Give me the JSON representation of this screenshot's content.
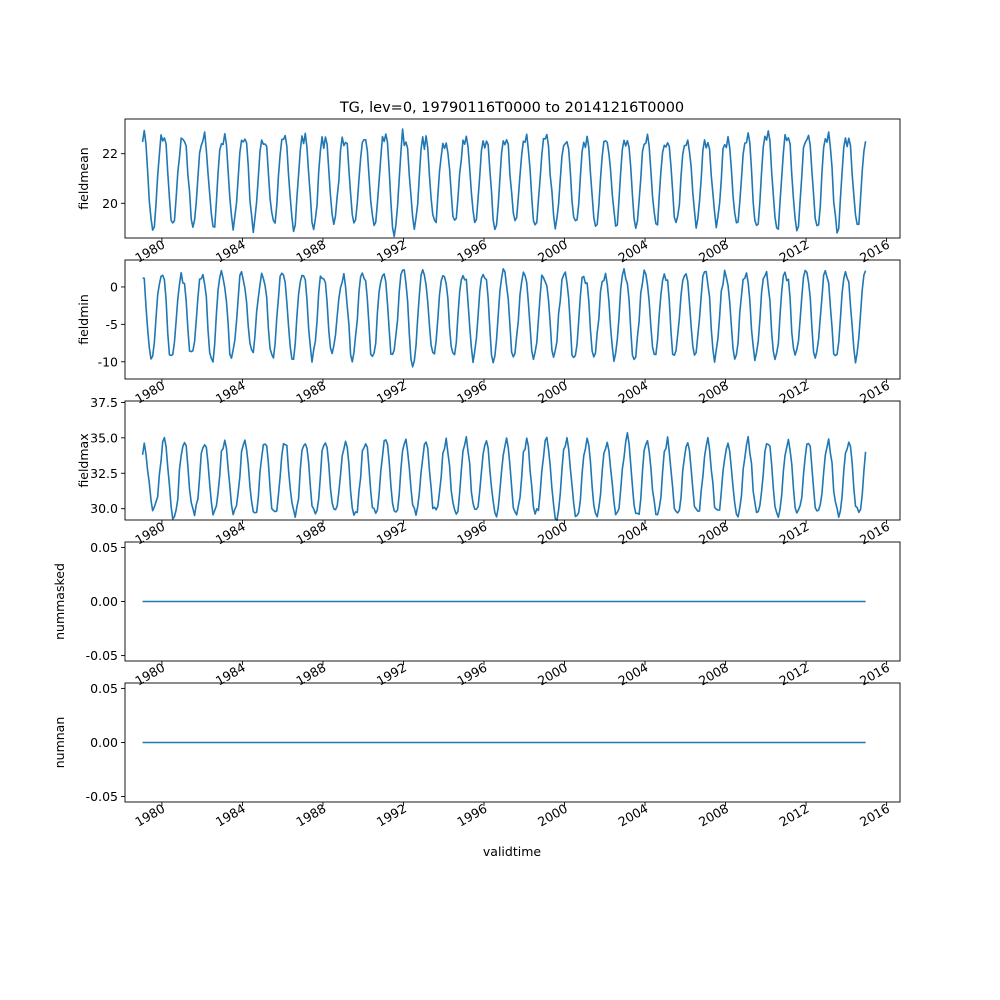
{
  "chart_data": {
    "title": "TG, lev=0, 19790116T0000 to 20141216T0000",
    "type": "line",
    "line_color": "#1f77b4",
    "xlabel": "validtime",
    "x_ticks": [
      "1980",
      "1984",
      "1988",
      "1992",
      "1996",
      "2000",
      "2004",
      "2008",
      "2012",
      "2016"
    ],
    "x_range": [
      "1978-03-01",
      "2016-09-01"
    ],
    "x_start": "1979-01",
    "x_end": "2014-12",
    "panels": [
      {
        "ylabel": "fieldmean",
        "y_ticks": [
          "20",
          "22"
        ],
        "y_tick_values": [
          20,
          22
        ],
        "ylim": [
          18.6,
          23.4
        ],
        "annual_cycle": [
          22.4,
          22.6,
          22.2,
          21.3,
          20.3,
          19.5,
          19.1,
          19.3,
          20.1,
          21.1,
          22.0,
          22.5
        ],
        "yearly_amplitude_scale": [
          1.15,
          1.05,
          1.0,
          1.05,
          1.0,
          1.05,
          1.0,
          1.05,
          1.05,
          1.0,
          1.0,
          1.0,
          1.2,
          1.0,
          0.95,
          0.95,
          0.95,
          1.0,
          1.0,
          1.05,
          1.0,
          1.0,
          1.0,
          1.0,
          1.0,
          1.0,
          1.0,
          1.0,
          1.0,
          1.0,
          1.1,
          1.1,
          1.05,
          1.05,
          1.1,
          1.05
        ],
        "grid": false
      },
      {
        "ylabel": "fieldmin",
        "y_ticks": [
          "-10",
          "-5",
          "0"
        ],
        "y_tick_values": [
          -10,
          -5,
          0
        ],
        "ylim": [
          -12.3,
          3.6
        ],
        "annual_cycle": [
          1.5,
          0.5,
          -2.0,
          -5.5,
          -8.5,
          -9.5,
          -9.0,
          -7.0,
          -4.0,
          -1.0,
          1.0,
          1.8
        ],
        "yearly_amplitude_scale": [
          1.0,
          1.0,
          0.9,
          1.1,
          1.0,
          0.9,
          1.0,
          1.0,
          1.0,
          0.9,
          1.0,
          1.0,
          1.0,
          1.1,
          0.9,
          1.0,
          1.0,
          1.0,
          1.0,
          1.0,
          0.9,
          1.0,
          0.9,
          1.0,
          1.0,
          1.0,
          1.0,
          1.0,
          1.0,
          1.0,
          1.0,
          1.0,
          1.0,
          1.0,
          1.0,
          1.0
        ],
        "grid": false
      },
      {
        "ylabel": "fieldmax",
        "y_ticks": [
          "30.0",
          "32.5",
          "35.0",
          "37.5"
        ],
        "y_tick_values": [
          30.0,
          32.5,
          35.0,
          37.5
        ],
        "ylim": [
          29.2,
          37.6
        ],
        "annual_cycle": [
          34.3,
          34.8,
          34.2,
          33.0,
          31.5,
          30.3,
          29.8,
          29.7,
          30.0,
          31.0,
          32.5,
          33.8
        ],
        "yearly_amplitude_scale": [
          0.9,
          1.1,
          1.0,
          1.0,
          1.0,
          1.0,
          1.0,
          1.0,
          1.0,
          1.0,
          1.0,
          1.0,
          1.1,
          1.0,
          1.0,
          1.0,
          1.0,
          1.0,
          1.0,
          1.0,
          1.1,
          1.1,
          1.0,
          1.0,
          1.1,
          1.0,
          1.0,
          1.0,
          1.0,
          1.0,
          1.0,
          1.0,
          1.0,
          1.0,
          1.0,
          1.0
        ],
        "grid": false
      },
      {
        "ylabel": "nummasked",
        "y_ticks": [
          "-0.05",
          "0.00",
          "0.05"
        ],
        "y_tick_values": [
          -0.05,
          0.0,
          0.05
        ],
        "ylim": [
          -0.055,
          0.055
        ],
        "constant": 0.0,
        "grid": false
      },
      {
        "ylabel": "numnan",
        "y_ticks": [
          "-0.05",
          "0.00",
          "0.05"
        ],
        "y_tick_values": [
          -0.05,
          0.0,
          0.05
        ],
        "ylim": [
          -0.055,
          0.055
        ],
        "constant": 0.0,
        "grid": false
      }
    ]
  }
}
